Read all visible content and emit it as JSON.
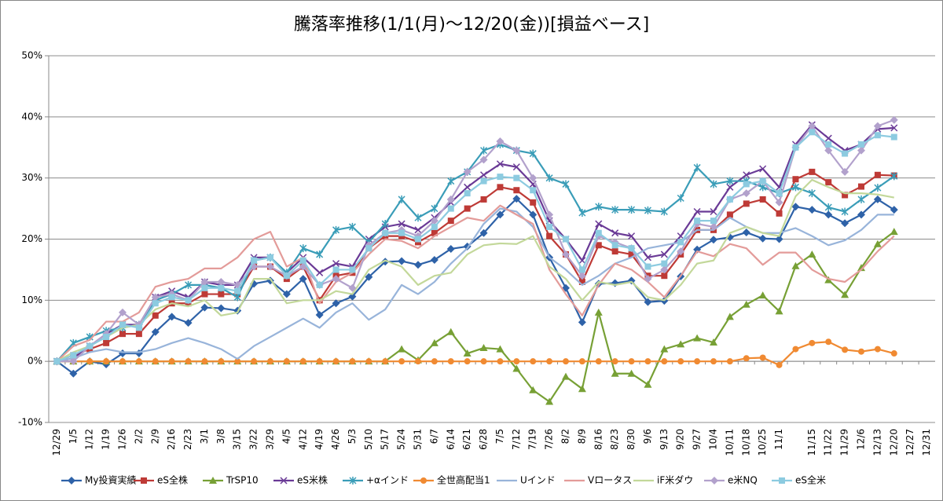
{
  "chart_data": {
    "type": "line",
    "title": "騰落率推移(1/1(月)～12/20(金))[損益ベース]",
    "categories": [
      "12/29",
      "1/5",
      "1/12",
      "1/19",
      "1/26",
      "2/2",
      "2/9",
      "2/16",
      "2/23",
      "3/1",
      "3/8",
      "3/15",
      "3/22",
      "3/29",
      "4/5",
      "4/12",
      "4/19",
      "4/26",
      "5/3",
      "5/10",
      "5/17",
      "5/24",
      "5/31",
      "6/7",
      "6/14",
      "6/21",
      "6/28",
      "7/5",
      "7/12",
      "7/19",
      "7/26",
      "8/2",
      "8/9",
      "8/16",
      "8/23",
      "8/30",
      "9/6",
      "9/13",
      "9/20",
      "9/27",
      "10/4",
      "10/11",
      "10/18",
      "10/25",
      "11/1",
      null,
      "11/15",
      "11/22",
      "11/29",
      "12/6",
      "12/13",
      "12/20",
      "12/27",
      "12/31"
    ],
    "ylim": [
      -10,
      50
    ],
    "yticks": [
      {
        "value": -10,
        "label": "-10%"
      },
      {
        "value": 0,
        "label": "0%"
      },
      {
        "value": 10,
        "label": "10%"
      },
      {
        "value": 20,
        "label": "20%"
      },
      {
        "value": 30,
        "label": "30%"
      },
      {
        "value": 40,
        "label": "40%"
      },
      {
        "value": 50,
        "label": "50%"
      }
    ],
    "grid": true,
    "legend": "bottom",
    "series": [
      {
        "name": "My投資実績",
        "color": "#2e62a8",
        "marker": "diamond",
        "values": [
          0,
          -2,
          0,
          -0.5,
          1.3,
          1.3,
          4.8,
          7.3,
          6.3,
          8.8,
          8.7,
          8.3,
          12.7,
          13.2,
          11,
          13.5,
          7.6,
          9.5,
          10.6,
          13.8,
          16.3,
          16.4,
          15.8,
          16.6,
          18.4,
          18.8,
          21,
          24,
          26.6,
          24,
          17,
          12,
          6.4,
          12.7,
          12.8,
          13.2,
          9.7,
          9.9,
          13.9,
          18.3,
          19.9,
          20.3,
          21.1,
          20.1,
          20.0,
          25.3,
          24.8,
          24.0,
          22.6,
          24,
          26.5,
          24.8,
          null,
          null
        ]
      },
      {
        "name": "eS全株",
        "color": "#be3a36",
        "marker": "square",
        "values": [
          0,
          1,
          2,
          3,
          4.5,
          4.5,
          7.5,
          9.5,
          9.5,
          11,
          11,
          11,
          15.5,
          15.5,
          13.5,
          15.5,
          10,
          14,
          14.5,
          18.5,
          20.5,
          20.5,
          19.5,
          21,
          23,
          25,
          26.5,
          28.5,
          28,
          26,
          20.5,
          17.5,
          13,
          19,
          18,
          17.5,
          14,
          14,
          17.5,
          21.5,
          21.5,
          24,
          25.8,
          26.5,
          24.2,
          29.8,
          31,
          29.3,
          27.2,
          28.6,
          30.5,
          30.4,
          null,
          null
        ]
      },
      {
        "name": "TrSP10",
        "color": "#77a035",
        "marker": "triangle",
        "values": [
          0,
          0,
          0,
          0,
          0,
          0,
          0,
          0,
          0,
          0,
          0,
          0,
          0,
          0,
          0,
          0,
          0,
          0,
          0,
          0,
          0,
          2,
          0.2,
          3,
          4.8,
          1.3,
          2.2,
          2,
          -1.2,
          -4.7,
          -6.6,
          -2.5,
          -4.5,
          8,
          -2,
          -2,
          -3.8,
          2,
          2.8,
          3.8,
          3.1,
          7.3,
          9.3,
          10.8,
          8.2,
          15.6,
          17.5,
          13.3,
          10.9,
          15.3,
          19.2,
          21.2,
          null,
          null
        ]
      },
      {
        "name": "eS米株",
        "color": "#6a3a96",
        "marker": "x",
        "values": [
          0,
          0.5,
          2.5,
          4.5,
          6,
          6,
          10.5,
          11.5,
          10.5,
          13,
          12.5,
          12.5,
          17,
          17,
          14.5,
          17,
          14.5,
          16,
          15.5,
          20,
          22,
          22.5,
          21.5,
          23.5,
          26,
          28.5,
          30.5,
          32.3,
          31.8,
          29,
          23,
          20,
          16.5,
          22.5,
          21,
          20.5,
          17,
          17.5,
          20.5,
          24.5,
          24.5,
          28.5,
          30.5,
          31.5,
          28.5,
          35.5,
          38.7,
          36.5,
          34.5,
          35.5,
          38,
          38.2,
          null,
          null
        ]
      },
      {
        "name": "+αインド",
        "color": "#3a9db8",
        "marker": "star",
        "values": [
          0,
          3,
          4,
          5,
          5.5,
          6,
          10,
          11,
          12.5,
          12.5,
          12,
          10.5,
          16.5,
          17,
          14.5,
          18.5,
          17.5,
          21.5,
          22,
          19.5,
          22.5,
          26.5,
          23.5,
          25,
          29.5,
          31,
          34.5,
          35.5,
          34.5,
          34,
          30,
          29,
          24.3,
          25.3,
          24.8,
          24.8,
          24.7,
          24.5,
          26.7,
          31.7,
          29,
          29.5,
          29.5,
          28.5,
          27.5,
          28.5,
          27.5,
          25.2,
          24.5,
          26.5,
          28.4,
          30.3,
          null,
          null
        ]
      },
      {
        "name": "全世高配当1",
        "color": "#f08a32",
        "marker": "circle",
        "values": [
          0,
          0,
          0,
          0,
          0,
          0,
          0,
          0,
          0,
          0,
          0,
          0,
          0,
          0,
          0,
          0,
          0,
          0,
          0,
          0,
          0,
          0,
          0,
          0,
          0,
          0,
          0,
          0,
          0,
          0,
          0,
          0,
          0,
          0,
          0,
          0,
          0,
          0,
          0,
          0,
          0,
          0,
          0.5,
          0.6,
          -0.6,
          2.0,
          3.0,
          3.2,
          1.9,
          1.6,
          2.0,
          1.3,
          null,
          null
        ]
      },
      {
        "name": "Uインド",
        "color": "#98b4da",
        "marker": "none",
        "values": [
          0,
          0.5,
          1.5,
          2,
          1.5,
          1.5,
          2,
          3,
          3.8,
          3,
          2,
          0.4,
          2.5,
          4,
          5.5,
          7,
          5.5,
          8,
          9.5,
          6.8,
          8.5,
          12.5,
          11,
          13,
          16,
          18.5,
          22.5,
          25,
          24.5,
          22,
          17,
          15,
          12.5,
          14,
          16,
          17,
          18.5,
          19,
          19.5,
          21.5,
          21.5,
          23.5,
          22,
          21,
          21,
          21.8,
          20.5,
          19,
          19.8,
          21.5,
          24,
          24,
          null,
          null
        ]
      },
      {
        "name": "Vロータス",
        "color": "#e39b99",
        "marker": "none",
        "values": [
          0,
          2.5,
          3.5,
          6.5,
          6.5,
          8,
          12.2,
          13,
          13.5,
          15.2,
          15.2,
          17,
          20,
          21.2,
          15.5,
          17,
          9.5,
          13,
          14.5,
          17.5,
          20,
          19.7,
          18.5,
          20.5,
          22,
          23.5,
          23,
          25.5,
          24,
          22.5,
          15,
          11,
          7.5,
          12.5,
          16,
          15,
          13,
          10.5,
          14,
          18,
          17.2,
          19.2,
          18.5,
          15.8,
          17.8,
          17.8,
          15,
          13.5,
          13,
          15,
          18,
          20.5,
          null,
          null
        ]
      },
      {
        "name": "iF米ダウ",
        "color": "#c3d89a",
        "marker": "none",
        "values": [
          0,
          1.5,
          2.5,
          4,
          5.5,
          6,
          8.5,
          9.5,
          9,
          10,
          7.5,
          8,
          13.5,
          13.5,
          9.5,
          10,
          10,
          11.5,
          11,
          15,
          16.5,
          15.5,
          12.5,
          14,
          14.5,
          17.5,
          19,
          19.3,
          19.2,
          20.5,
          15.5,
          13.5,
          10,
          13,
          12.5,
          13,
          10.5,
          10,
          12.5,
          16,
          16.5,
          21,
          22,
          21,
          20.5,
          27,
          29.7,
          28.5,
          27.5,
          27.5,
          27.3,
          26.8,
          null,
          null
        ]
      },
      {
        "name": "e米NQ",
        "color": "#b2a1cc",
        "marker": "diamond",
        "values": [
          0,
          0,
          2.5,
          4.5,
          8,
          6,
          10.5,
          11,
          10,
          13,
          13,
          12.5,
          15.5,
          15.5,
          14,
          15.5,
          12.5,
          13.5,
          12,
          19,
          21,
          21.5,
          20.5,
          23,
          26.5,
          31,
          33,
          36,
          34.5,
          30,
          24,
          17.5,
          14,
          20.5,
          19.5,
          18.5,
          13.5,
          15,
          18,
          22.5,
          22,
          26.5,
          27.5,
          29.5,
          26,
          35,
          38.5,
          34.5,
          31,
          34.5,
          38.5,
          39.5,
          null,
          null
        ]
      },
      {
        "name": "eS全米",
        "color": "#8ccbe0",
        "marker": "square",
        "values": [
          0,
          1,
          2.5,
          4,
          6,
          5.5,
          9.5,
          10.5,
          10,
          12,
          12,
          11.5,
          16.5,
          17,
          14,
          16.5,
          12.5,
          15,
          15,
          18.5,
          21,
          21,
          20,
          22,
          25,
          27.5,
          29.5,
          30.2,
          30,
          28,
          22,
          20,
          15,
          21,
          19,
          18.5,
          15.5,
          16,
          19.5,
          23,
          23,
          26.5,
          29,
          29.5,
          27.5,
          35,
          37.5,
          35.5,
          34,
          35.5,
          37,
          36.7,
          null,
          null
        ]
      }
    ]
  }
}
